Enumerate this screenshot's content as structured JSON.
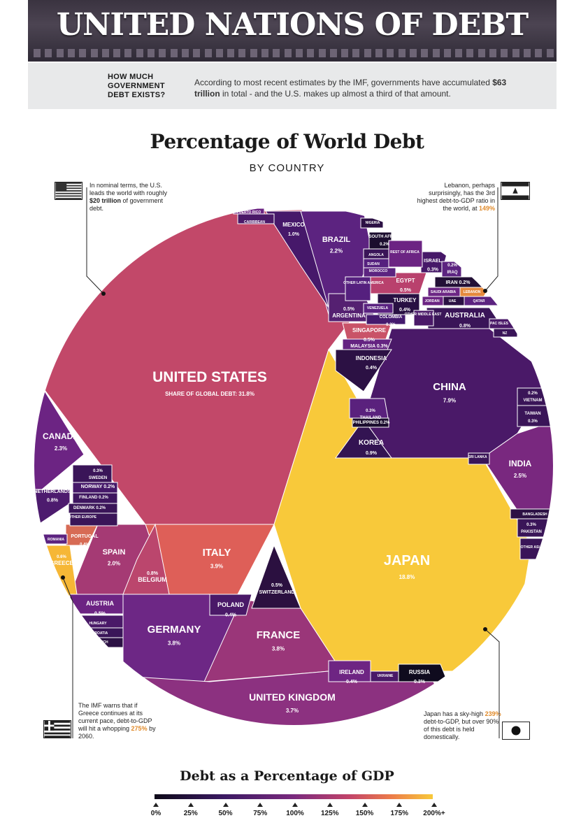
{
  "header": {
    "title": "UNITED NATIONS OF DEBT",
    "question": "HOW MUCH GOVERNMENT DEBT EXISTS?",
    "answer_pre": "According to most recent estimates by the IMF, governments have accumulated ",
    "answer_bold": "$63 trillion",
    "answer_post": " in total - and the U.S. makes up almost a third of that amount."
  },
  "chart_title": "Percentage of World Debt",
  "chart_subtitle": "BY COUNTRY",
  "notes": {
    "us": {
      "pre": "In nominal terms, the U.S. leads the world with roughly ",
      "bold": "$20 trillion",
      "post": " of government debt."
    },
    "lebanon": {
      "pre": "Lebanon, perhaps surprisingly, has the 3rd highest debt-to-GDP ratio in the world, at ",
      "hl": "149%"
    },
    "greece": {
      "pre": "The IMF warns that if Greece continues at its current pace, debt-to-GDP will hit a whopping ",
      "hl": "275%",
      "post": " by 2060."
    },
    "japan": {
      "pre": "Japan has a sky-high ",
      "hl": "239%",
      "post": " debt-to-GDP, but over 90% of this debt is held domestically."
    }
  },
  "chart_data": {
    "type": "voronoi-treemap",
    "title": "Percentage of World Debt",
    "subtitle": "BY COUNTRY",
    "unit": "% of global government debt",
    "color_scale": "Debt as a Percentage of GDP",
    "regions": [
      {
        "name": "UNITED STATES",
        "share_label": "SHARE OF GLOBAL DEBT: 31.8%",
        "value": 31.8
      },
      {
        "name": "JAPAN",
        "value": 18.8
      },
      {
        "name": "CHINA",
        "value": 7.9
      },
      {
        "name": "ITALY",
        "value": 3.9
      },
      {
        "name": "GERMANY",
        "value": 3.8
      },
      {
        "name": "FRANCE",
        "value": 3.8
      },
      {
        "name": "UNITED KINGDOM",
        "value": 3.7
      },
      {
        "name": "INDIA",
        "value": 2.5
      },
      {
        "name": "CANADA",
        "value": 2.3
      },
      {
        "name": "BRAZIL",
        "value": 2.2
      },
      {
        "name": "SPAIN",
        "value": 2.0
      },
      {
        "name": "MEXICO",
        "value": 1.0
      },
      {
        "name": "KOREA",
        "value": 0.9
      },
      {
        "name": "AUSTRALIA",
        "value": 0.8
      },
      {
        "name": "BELGIUM",
        "value": 0.8
      },
      {
        "name": "NETHERLANDS",
        "value": 0.8
      },
      {
        "name": "GREECE",
        "value": 0.6
      },
      {
        "name": "EGYPT",
        "value": 0.5
      },
      {
        "name": "SINGAPORE",
        "value": 0.5
      },
      {
        "name": "ARGENTINA",
        "value": 0.5
      },
      {
        "name": "SWITZERLAND",
        "value": 0.5
      },
      {
        "name": "AUSTRIA",
        "value": 0.5
      },
      {
        "name": "INDONESIA",
        "value": 0.4
      },
      {
        "name": "TURKEY",
        "value": 0.4
      },
      {
        "name": "POLAND",
        "value": 0.4
      },
      {
        "name": "IRELAND",
        "value": 0.4
      },
      {
        "name": "PORTUGAL",
        "value": 0.4
      },
      {
        "name": "MALAYSIA",
        "value": 0.3
      },
      {
        "name": "THAILAND",
        "value": 0.3
      },
      {
        "name": "SWEDEN",
        "value": 0.3
      },
      {
        "name": "RUSSIA",
        "value": 0.3
      },
      {
        "name": "ISRAEL",
        "value": 0.3
      },
      {
        "name": "TAIWAN",
        "value": 0.3
      },
      {
        "name": "PAKISTAN",
        "value": 0.3
      },
      {
        "name": "NORWAY",
        "value": 0.2
      },
      {
        "name": "FINLAND",
        "value": 0.2
      },
      {
        "name": "DENMARK",
        "value": 0.2
      },
      {
        "name": "SOUTH AFRICA",
        "value": 0.2
      },
      {
        "name": "IRAQ",
        "value": 0.2
      },
      {
        "name": "IRAN",
        "value": 0.2
      },
      {
        "name": "COLOMBIA",
        "value": 0.2
      },
      {
        "name": "PHILIPPINES",
        "value": 0.2
      },
      {
        "name": "VIETNAM",
        "value": 0.2
      }
    ],
    "unlabeled_value_regions": [
      "PUERTO RICO",
      "CARIBBEAN",
      "NIGERIA",
      "ANGOLA",
      "SUDAN",
      "MOROCCO",
      "REST OF AFRICA",
      "OTHER LATIN AMERICA",
      "VENEZUELA",
      "SAUDI ARABIA",
      "LEBANON",
      "JORDAN",
      "UAE",
      "QATAR",
      "OTHER MIDDLE EAST",
      "PAC ISLES",
      "NZ",
      "SRI LANKA",
      "BANGLADESH",
      "OTHER ASIA",
      "OTHER EUROPE",
      "ROMANIA",
      "HUNGARY",
      "CROATIA",
      "CZECH",
      "UKRAINE"
    ],
    "legend": {
      "title": "Debt as a Percentage of GDP",
      "ticks": [
        "0%",
        "25%",
        "50%",
        "75%",
        "100%",
        "125%",
        "150%",
        "175%",
        "200%+"
      ]
    }
  }
}
